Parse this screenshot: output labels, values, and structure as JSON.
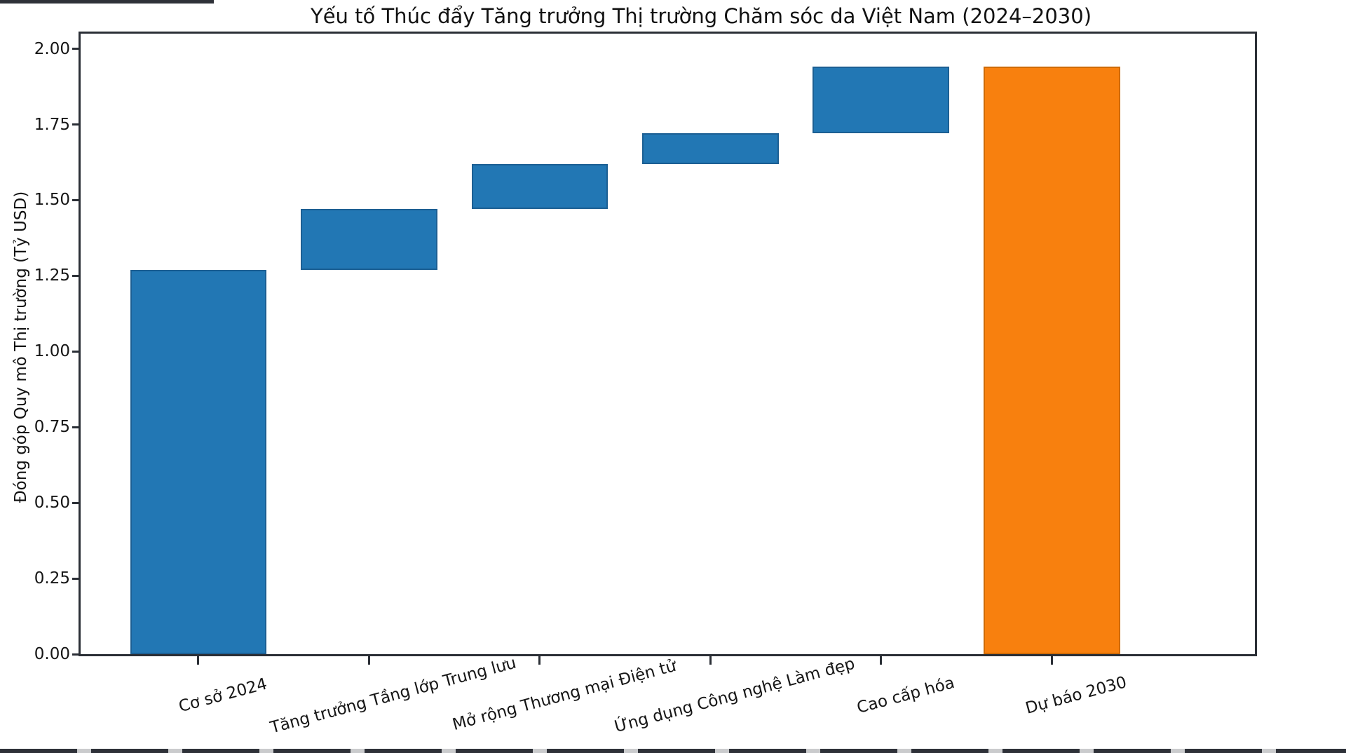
{
  "chart_data": {
    "type": "bar",
    "subtype": "waterfall",
    "title": "Yếu tố Thúc đẩy Tăng trưởng Thị trường Chăm sóc da Việt Nam (2024–2030)",
    "xlabel": "",
    "ylabel": "Đóng góp Quy mô Thị trường (Tỷ USD)",
    "ylim": [
      0,
      2.05
    ],
    "ytick_values": [
      0.0,
      0.25,
      0.5,
      0.75,
      1.0,
      1.25,
      1.5,
      1.75,
      2.0
    ],
    "ytick_labels": [
      "0.00",
      "0.25",
      "0.50",
      "0.75",
      "1.00",
      "1.25",
      "1.50",
      "1.75",
      "2.00"
    ],
    "grid": false,
    "legend": "none",
    "x_label_rotation_deg": 15,
    "categories": [
      "Cơ sở 2024",
      "Tăng trưởng Tầng lớp Trung lưu",
      "Mở rộng Thương mại Điện tử",
      "Ứng dụng Công nghệ Làm đẹp",
      "Cao cấp hóa",
      "Dự báo 2030"
    ],
    "series": [
      {
        "name": "Đóng góp Quy mô Thị trường (Tỷ USD)",
        "segments": [
          {
            "label": "Cơ sở 2024",
            "start": 0.0,
            "end": 1.27,
            "delta": 1.27,
            "role": "base"
          },
          {
            "label": "Tăng trưởng Tầng lớp Trung lưu",
            "start": 1.27,
            "end": 1.47,
            "delta": 0.2,
            "role": "increase"
          },
          {
            "label": "Mở rộng Thương mại Điện tử",
            "start": 1.47,
            "end": 1.62,
            "delta": 0.15,
            "role": "increase"
          },
          {
            "label": "Ứng dụng Công nghệ Làm đẹp",
            "start": 1.62,
            "end": 1.72,
            "delta": 0.1,
            "role": "increase"
          },
          {
            "label": "Cao cấp hóa",
            "start": 1.72,
            "end": 1.94,
            "delta": 0.22,
            "role": "increase"
          },
          {
            "label": "Dự báo 2030",
            "start": 0.0,
            "end": 1.94,
            "delta": 1.94,
            "role": "total"
          }
        ]
      }
    ],
    "totals": {
      "base_2024": 1.27,
      "forecast_2030": 1.94
    }
  },
  "style": {
    "bar_blue": "#2277b4",
    "bar_blue_edge": "#1c5f93",
    "bar_orange": "#f8800e",
    "bar_orange_edge": "#cf6b06",
    "spine_color": "#2b2f36",
    "text_color": "#141414",
    "background": "#ffffff"
  }
}
